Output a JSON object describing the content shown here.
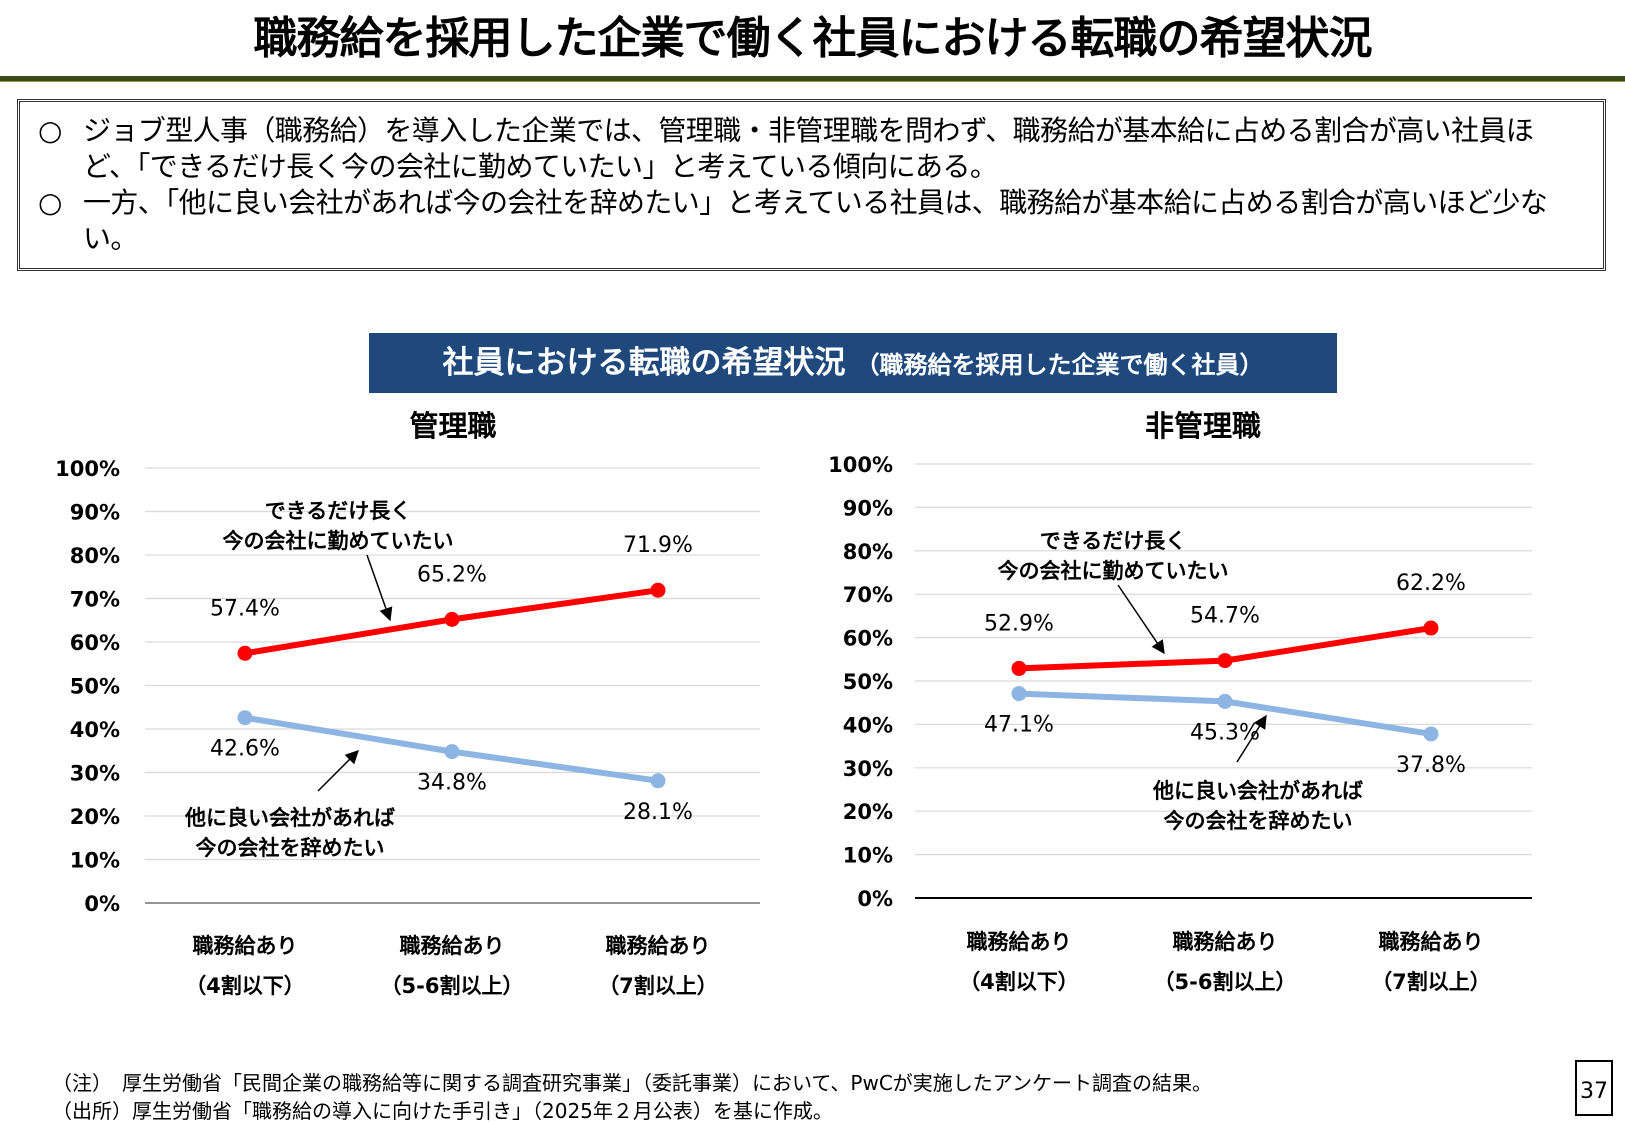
{
  "slide_title": "職務給を採用した企業で働く社員における転職の希望状況",
  "summary": [
    {
      "bullet": "○",
      "text": "ジョブ型人事（職務給）を導入した企業では、管理職・非管理職を問わず、職務給が基本給に占める割合が高い社員ほど、「できるだけ長く今の会社に勤めていたい」と考えている傾向にある。"
    },
    {
      "bullet": "○",
      "text": "一方、「他に良い会社があれば今の会社を辞めたい」と考えている社員は、職務給が基本給に占める割合が高いほど少ない。"
    }
  ],
  "banner": {
    "main": "社員における転職の希望状況",
    "sub": "（職務給を採用した企業で働く社員）"
  },
  "colors": {
    "stay": "#ff0000",
    "leave": "#8db4e2",
    "banner": "#1f497d"
  },
  "chart_data": [
    {
      "type": "line",
      "title": "管理職",
      "categories": [
        {
          "line1": "職務給あり",
          "line2": "（4割以下）"
        },
        {
          "line1": "職務給あり",
          "line2": "（5-6割以上）"
        },
        {
          "line1": "職務給あり",
          "line2": "（7割以上）"
        }
      ],
      "y_ticks": [
        "0%",
        "10%",
        "20%",
        "30%",
        "40%",
        "50%",
        "60%",
        "70%",
        "80%",
        "90%",
        "100%"
      ],
      "ylim": [
        0,
        100
      ],
      "grid": true,
      "series": [
        {
          "name_lines": [
            "できるだけ長く",
            "今の会社に勤めていたい"
          ],
          "color": "#ff0000",
          "values": [
            57.4,
            65.2,
            71.9
          ],
          "labels": [
            "57.4%",
            "65.2%",
            "71.9%"
          ]
        },
        {
          "name_lines": [
            "他に良い会社があれば",
            "今の会社を辞めたい"
          ],
          "color": "#8db4e2",
          "values": [
            42.6,
            34.8,
            28.1
          ],
          "labels": [
            "42.6%",
            "34.8%",
            "28.1%"
          ]
        }
      ]
    },
    {
      "type": "line",
      "title": "非管理職",
      "categories": [
        {
          "line1": "職務給あり",
          "line2": "（4割以下）"
        },
        {
          "line1": "職務給あり",
          "line2": "（5-6割以上）"
        },
        {
          "line1": "職務給あり",
          "line2": "（7割以上）"
        }
      ],
      "y_ticks": [
        "0%",
        "10%",
        "20%",
        "30%",
        "40%",
        "50%",
        "60%",
        "70%",
        "80%",
        "90%",
        "100%"
      ],
      "ylim": [
        0,
        100
      ],
      "grid": true,
      "series": [
        {
          "name_lines": [
            "できるだけ長く",
            "今の会社に勤めていたい"
          ],
          "color": "#ff0000",
          "values": [
            52.9,
            54.7,
            62.2
          ],
          "labels": [
            "52.9%",
            "54.7%",
            "62.2%"
          ]
        },
        {
          "name_lines": [
            "他に良い会社があれば",
            "今の会社を辞めたい"
          ],
          "color": "#8db4e2",
          "values": [
            47.1,
            45.3,
            37.8
          ],
          "labels": [
            "47.1%",
            "45.3%",
            "37.8%"
          ]
        }
      ]
    }
  ],
  "notes": [
    "（注）　厚生労働省「民間企業の職務給等に関する調査研究事業」（委託事業）において、PwCが実施したアンケート調査の結果。",
    "（出所）厚生労働省「職務給の導入に向けた手引き」（2025年２月公表）を基に作成。"
  ],
  "page_number": "37"
}
